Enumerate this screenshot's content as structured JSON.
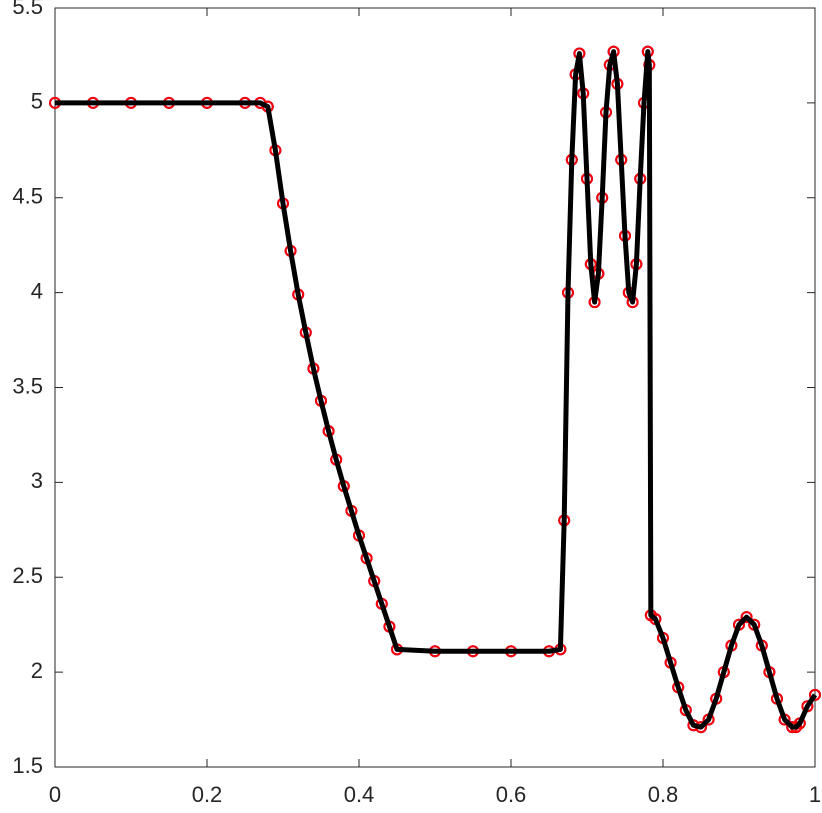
{
  "chart_data": {
    "type": "line",
    "x": [
      0,
      0.05,
      0.1,
      0.15,
      0.2,
      0.25,
      0.27,
      0.28,
      0.29,
      0.3,
      0.31,
      0.32,
      0.33,
      0.34,
      0.35,
      0.36,
      0.37,
      0.38,
      0.39,
      0.4,
      0.41,
      0.42,
      0.43,
      0.44,
      0.45,
      0.5,
      0.55,
      0.6,
      0.65,
      0.665,
      0.67,
      0.675,
      0.68,
      0.685,
      0.69,
      0.695,
      0.7,
      0.705,
      0.71,
      0.715,
      0.72,
      0.725,
      0.73,
      0.735,
      0.74,
      0.745,
      0.75,
      0.755,
      0.76,
      0.765,
      0.77,
      0.775,
      0.78,
      0.782,
      0.784,
      0.79,
      0.8,
      0.81,
      0.82,
      0.83,
      0.84,
      0.85,
      0.86,
      0.87,
      0.88,
      0.89,
      0.9,
      0.91,
      0.92,
      0.93,
      0.94,
      0.95,
      0.96,
      0.97,
      0.975,
      0.98,
      0.99,
      1.0
    ],
    "series": [
      {
        "color": "#0000ff",
        "style": "circle",
        "values": [
          5,
          5,
          5,
          5,
          5,
          5,
          5,
          4.98,
          4.75,
          4.47,
          4.22,
          3.99,
          3.79,
          3.6,
          3.43,
          3.27,
          3.12,
          2.98,
          2.85,
          2.72,
          2.6,
          2.48,
          2.36,
          2.24,
          2.12,
          2.11,
          2.11,
          2.11,
          2.11,
          2.12,
          2.8,
          4.0,
          4.7,
          5.15,
          5.26,
          5.05,
          4.6,
          4.15,
          3.95,
          4.1,
          4.5,
          4.95,
          5.2,
          5.27,
          5.1,
          4.7,
          4.3,
          4.0,
          3.95,
          4.15,
          4.6,
          5.0,
          5.27,
          5.2,
          2.3,
          2.28,
          2.18,
          2.05,
          1.92,
          1.8,
          1.72,
          1.71,
          1.75,
          1.86,
          2.0,
          2.14,
          2.25,
          2.29,
          2.25,
          2.14,
          2.0,
          1.86,
          1.75,
          1.71,
          1.71,
          1.73,
          1.82,
          1.88
        ]
      },
      {
        "color": "#ff0000",
        "style": "circle",
        "values": [
          5,
          5,
          5,
          5,
          5,
          5,
          5,
          4.98,
          4.75,
          4.47,
          4.22,
          3.99,
          3.79,
          3.6,
          3.43,
          3.27,
          3.12,
          2.98,
          2.85,
          2.72,
          2.6,
          2.48,
          2.36,
          2.24,
          2.12,
          2.11,
          2.11,
          2.11,
          2.11,
          2.12,
          2.8,
          4.0,
          4.7,
          5.15,
          5.26,
          5.05,
          4.6,
          4.15,
          3.95,
          4.1,
          4.5,
          4.95,
          5.2,
          5.27,
          5.1,
          4.7,
          4.3,
          4.0,
          3.95,
          4.15,
          4.6,
          5.0,
          5.27,
          5.2,
          2.3,
          2.28,
          2.18,
          2.05,
          1.92,
          1.8,
          1.72,
          1.71,
          1.75,
          1.86,
          2.0,
          2.14,
          2.25,
          2.29,
          2.25,
          2.14,
          2.0,
          1.86,
          1.75,
          1.71,
          1.71,
          1.73,
          1.82,
          1.88
        ]
      },
      {
        "color": "#000000",
        "style": "line",
        "values": [
          5,
          5,
          5,
          5,
          5,
          5,
          5,
          4.98,
          4.75,
          4.47,
          4.22,
          3.99,
          3.79,
          3.6,
          3.43,
          3.27,
          3.12,
          2.98,
          2.85,
          2.72,
          2.6,
          2.48,
          2.36,
          2.24,
          2.12,
          2.11,
          2.11,
          2.11,
          2.11,
          2.12,
          2.8,
          4.0,
          4.7,
          5.15,
          5.26,
          5.05,
          4.6,
          4.15,
          3.95,
          4.1,
          4.5,
          4.95,
          5.2,
          5.27,
          5.1,
          4.7,
          4.3,
          4.0,
          3.95,
          4.15,
          4.6,
          5.0,
          5.27,
          5.2,
          2.3,
          2.28,
          2.18,
          2.05,
          1.92,
          1.8,
          1.72,
          1.71,
          1.75,
          1.86,
          2.0,
          2.14,
          2.25,
          2.29,
          2.25,
          2.14,
          2.0,
          1.86,
          1.75,
          1.71,
          1.71,
          1.73,
          1.82,
          1.88
        ]
      }
    ],
    "xlim": [
      0,
      1
    ],
    "xticks": [
      0,
      0.2,
      0.4,
      0.6,
      0.8,
      1
    ],
    "ylim": [
      1.5,
      5.5
    ],
    "yticks": [
      1.5,
      2,
      2.5,
      3,
      3.5,
      4,
      4.5,
      5,
      5.5
    ]
  }
}
